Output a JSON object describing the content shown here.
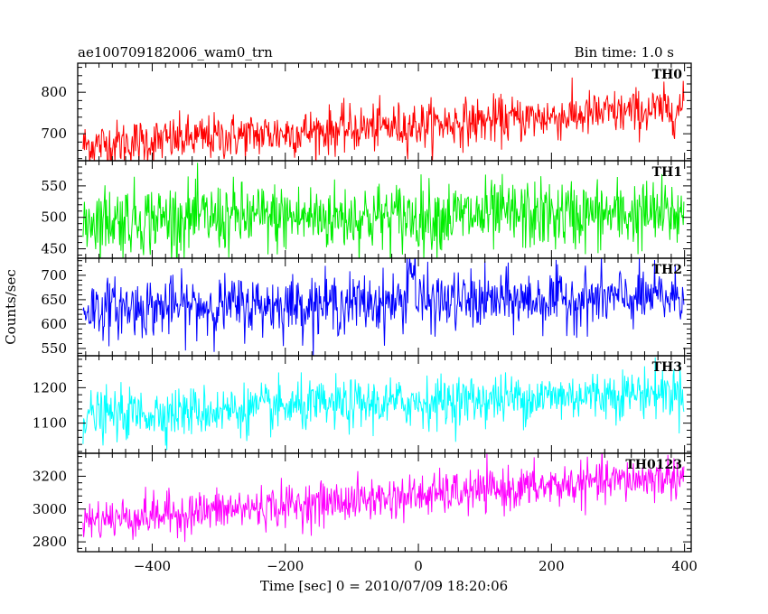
{
  "header": {
    "left_title": "ae100709182006_wam0_trn",
    "right_title": "Bin time: 1.0 s"
  },
  "chart_data": {
    "type": "line",
    "title": "ae100709182006_wam0_trn",
    "subtitle": "Bin time: 1.0 s",
    "xlabel": "Time [sec] 0 = 2010/07/09 18:20:06",
    "ylabel": "Counts/sec",
    "xlim": [
      -512,
      410
    ],
    "x_ticks": [
      -400,
      -200,
      0,
      200,
      400
    ],
    "x_tick_labels": [
      "−400",
      "−200",
      "0",
      "200",
      "400"
    ],
    "bin_time_s": 1.0,
    "x_start": -504,
    "x_end": 399,
    "grid": false,
    "legend": "none",
    "series": [
      {
        "name": "TH0",
        "color": "#ff0000",
        "ylim": [
          635,
          870
        ],
        "y_ticks": [
          700,
          800
        ],
        "trend_start": 672,
        "trend_end": 760,
        "noise_sd": 28,
        "values_summary": "rising trend ~672 → ~760 counts/s"
      },
      {
        "name": "TH1",
        "color": "#00ee00",
        "ylim": [
          435,
          590
        ],
        "y_ticks": [
          450,
          500,
          550
        ],
        "trend_start": 497,
        "trend_end": 505,
        "noise_sd": 28,
        "values_summary": "roughly flat ~500 counts/s"
      },
      {
        "name": "TH2",
        "color": "#0000ff",
        "ylim": [
          535,
          735
        ],
        "y_ticks": [
          550,
          600,
          650,
          700
        ],
        "trend_start": 632,
        "trend_end": 655,
        "noise_sd": 30,
        "values_summary": "roughly flat ~635 → ~655 counts/s, spike near x=-10"
      },
      {
        "name": "TH3",
        "color": "#00ffff",
        "ylim": [
          1015,
          1290
        ],
        "y_ticks": [
          1100,
          1200
        ],
        "trend_start": 1120,
        "trend_end": 1190,
        "noise_sd": 35,
        "values_summary": "rising trend ~1120 → ~1190 counts/s"
      },
      {
        "name": "TH0123",
        "color": "#ff00ff",
        "ylim": [
          2740,
          3340
        ],
        "y_ticks": [
          2800,
          3000,
          3200
        ],
        "trend_start": 2930,
        "trend_end": 3200,
        "noise_sd": 65,
        "values_summary": "rising trend ~2930 → ~3200 counts/s"
      }
    ]
  }
}
